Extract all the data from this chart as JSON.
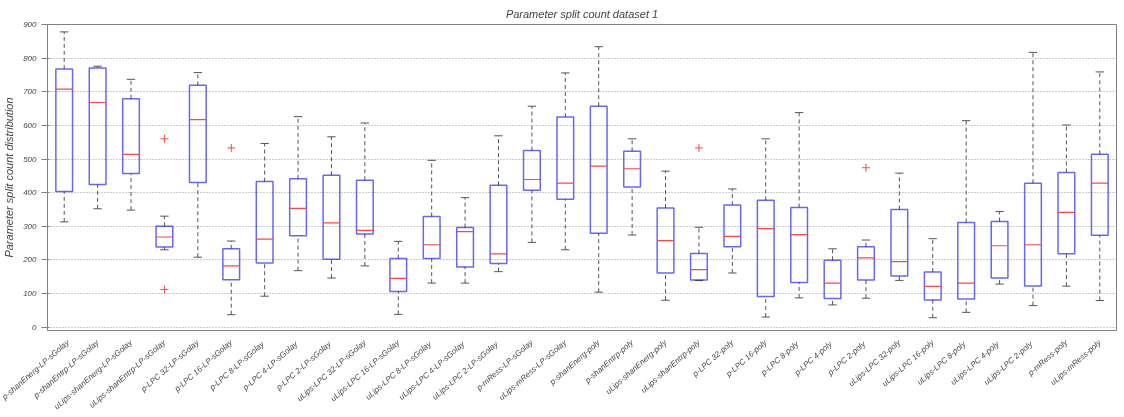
{
  "chart_data": {
    "type": "box",
    "title": "Parameter split count dataset 1",
    "ylabel": "Parameter split count distribution",
    "categories": [
      "p-shanEnerg-LP-sGolay",
      "p-shanEntrp-LP-sGolay",
      "uLips-shanEnerg-LP-sGolay",
      "uLips-shanEntrp-LP-sGolay",
      "p-LPC 32-LP-sGolay",
      "p-LPC 16-LP-sGolay",
      "p-LPC  8-LP-sGolay",
      "p-LPC  4-LP-sGolay",
      "p-LPC  2-LP-sGolay",
      "uLips-LPC 32-LP-sGolay",
      "uLips-LPC 16-LP-sGolay",
      "uLips-LPC  8-LP-sGolay",
      "uLips-LPC  4-LP-sGolay",
      "uLips-LPC  2-LP-sGolay",
      "p-mRess-LP-sGolay",
      "uLips-mRess-LP-sGolay",
      "p-shanEnerg-poly",
      "p-shanEntrp-poly",
      "uLips-shanEnerg-poly",
      "uLips-shanEntrp-poly",
      "p-LPC 32-poly",
      "p-LPC 16-poly",
      "p-LPC  8-poly",
      "p-LPC  4-poly",
      "p-LPC  2-poly",
      "uLips-LPC 32-poly",
      "uLips-LPC 16-poly",
      "uLips-LPC  8-poly",
      "uLips-LPC  4-poly",
      "uLips-LPC  2-poly",
      "p-mRess-poly",
      "uLips-mRess-poly"
    ],
    "series": [
      {
        "color": "#0000ff",
        "boxes": [
          {
            "low": 313,
            "q1": 403,
            "median": 708,
            "q3": 768,
            "high": 878
          },
          {
            "low": 352,
            "q1": 424,
            "median": 668,
            "q3": 771,
            "high": 776
          },
          {
            "low": 348,
            "q1": 457,
            "median": 514,
            "q3": 679,
            "high": 737
          },
          {
            "low": 230,
            "q1": 238,
            "median": 268,
            "q3": 300,
            "high": 330,
            "outliers": [
              560,
              112
            ]
          },
          {
            "low": 208,
            "q1": 430,
            "median": 617,
            "q3": 719,
            "high": 757
          },
          {
            "low": 37,
            "q1": 141,
            "median": 182,
            "q3": 233,
            "high": 256,
            "outliers": [
              533
            ]
          },
          {
            "low": 92,
            "q1": 191,
            "median": 262,
            "q3": 433,
            "high": 546
          },
          {
            "low": 168,
            "q1": 272,
            "median": 353,
            "q3": 441,
            "high": 626
          },
          {
            "low": 146,
            "q1": 202,
            "median": 310,
            "q3": 452,
            "high": 566
          },
          {
            "low": 182,
            "q1": 277,
            "median": 288,
            "q3": 437,
            "high": 607
          },
          {
            "low": 38,
            "q1": 106,
            "median": 145,
            "q3": 204,
            "high": 255
          },
          {
            "low": 131,
            "q1": 204,
            "median": 245,
            "q3": 329,
            "high": 496
          },
          {
            "low": 131,
            "q1": 179,
            "median": 284,
            "q3": 296,
            "high": 385
          },
          {
            "low": 165,
            "q1": 189,
            "median": 218,
            "q3": 422,
            "high": 569
          },
          {
            "low": 252,
            "q1": 407,
            "median": 439,
            "q3": 525,
            "high": 657
          },
          {
            "low": 230,
            "q1": 380,
            "median": 428,
            "q3": 625,
            "high": 756
          },
          {
            "low": 104,
            "q1": 279,
            "median": 479,
            "q3": 657,
            "high": 834
          },
          {
            "low": 274,
            "q1": 417,
            "median": 471,
            "q3": 523,
            "high": 560
          },
          {
            "low": 80,
            "q1": 161,
            "median": 257,
            "q3": 354,
            "high": 464
          },
          {
            "low": 139,
            "q1": 140,
            "median": 171,
            "q3": 219,
            "high": 297,
            "outliers": [
              533
            ]
          },
          {
            "low": 161,
            "q1": 239,
            "median": 270,
            "q3": 363,
            "high": 411
          },
          {
            "low": 30,
            "q1": 91,
            "median": 293,
            "q3": 377,
            "high": 560
          },
          {
            "low": 87,
            "q1": 133,
            "median": 275,
            "q3": 356,
            "high": 638
          },
          {
            "low": 66,
            "q1": 85,
            "median": 131,
            "q3": 199,
            "high": 233
          },
          {
            "low": 86,
            "q1": 140,
            "median": 206,
            "q3": 239,
            "high": 259,
            "outliers": [
              474
            ]
          },
          {
            "low": 139,
            "q1": 152,
            "median": 195,
            "q3": 350,
            "high": 458
          },
          {
            "low": 28,
            "q1": 81,
            "median": 121,
            "q3": 164,
            "high": 263
          },
          {
            "low": 44,
            "q1": 84,
            "median": 131,
            "q3": 311,
            "high": 614
          },
          {
            "low": 128,
            "q1": 146,
            "median": 242,
            "q3": 314,
            "high": 344
          },
          {
            "low": 64,
            "q1": 122,
            "median": 245,
            "q3": 428,
            "high": 817
          },
          {
            "low": 122,
            "q1": 218,
            "median": 341,
            "q3": 460,
            "high": 601
          },
          {
            "low": 79,
            "q1": 273,
            "median": 428,
            "q3": 514,
            "high": 759
          }
        ]
      }
    ],
    "ylim": [
      -10,
      900
    ],
    "yticks": [
      0,
      100,
      200,
      300,
      400,
      500,
      600,
      700,
      800,
      900
    ],
    "grid": "y"
  }
}
